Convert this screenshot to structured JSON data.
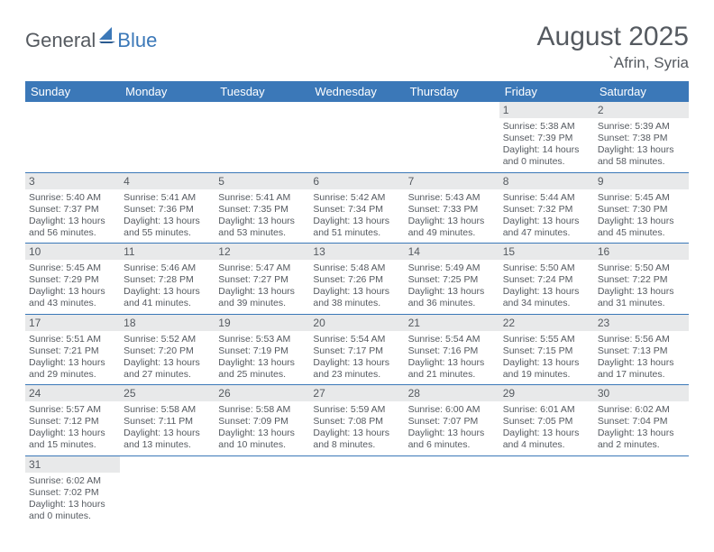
{
  "logo": {
    "general": "General",
    "blue": "Blue"
  },
  "header": {
    "title": "August 2025",
    "location": "`Afrin, Syria"
  },
  "colors": {
    "accent": "#3b78b8",
    "header_bg": "#3b78b8",
    "header_text": "#ffffff",
    "daynum_bg": "#e8e9ea",
    "text": "#555a60",
    "row_divider": "#3b78b8"
  },
  "dayNames": [
    "Sunday",
    "Monday",
    "Tuesday",
    "Wednesday",
    "Thursday",
    "Friday",
    "Saturday"
  ],
  "weeks": [
    [
      null,
      null,
      null,
      null,
      null,
      {
        "n": "1",
        "sunrise": "5:38 AM",
        "sunset": "7:39 PM",
        "dayH": 14,
        "dayM": 0
      },
      {
        "n": "2",
        "sunrise": "5:39 AM",
        "sunset": "7:38 PM",
        "dayH": 13,
        "dayM": 58
      }
    ],
    [
      {
        "n": "3",
        "sunrise": "5:40 AM",
        "sunset": "7:37 PM",
        "dayH": 13,
        "dayM": 56
      },
      {
        "n": "4",
        "sunrise": "5:41 AM",
        "sunset": "7:36 PM",
        "dayH": 13,
        "dayM": 55
      },
      {
        "n": "5",
        "sunrise": "5:41 AM",
        "sunset": "7:35 PM",
        "dayH": 13,
        "dayM": 53
      },
      {
        "n": "6",
        "sunrise": "5:42 AM",
        "sunset": "7:34 PM",
        "dayH": 13,
        "dayM": 51
      },
      {
        "n": "7",
        "sunrise": "5:43 AM",
        "sunset": "7:33 PM",
        "dayH": 13,
        "dayM": 49
      },
      {
        "n": "8",
        "sunrise": "5:44 AM",
        "sunset": "7:32 PM",
        "dayH": 13,
        "dayM": 47
      },
      {
        "n": "9",
        "sunrise": "5:45 AM",
        "sunset": "7:30 PM",
        "dayH": 13,
        "dayM": 45
      }
    ],
    [
      {
        "n": "10",
        "sunrise": "5:45 AM",
        "sunset": "7:29 PM",
        "dayH": 13,
        "dayM": 43
      },
      {
        "n": "11",
        "sunrise": "5:46 AM",
        "sunset": "7:28 PM",
        "dayH": 13,
        "dayM": 41
      },
      {
        "n": "12",
        "sunrise": "5:47 AM",
        "sunset": "7:27 PM",
        "dayH": 13,
        "dayM": 39
      },
      {
        "n": "13",
        "sunrise": "5:48 AM",
        "sunset": "7:26 PM",
        "dayH": 13,
        "dayM": 38
      },
      {
        "n": "14",
        "sunrise": "5:49 AM",
        "sunset": "7:25 PM",
        "dayH": 13,
        "dayM": 36
      },
      {
        "n": "15",
        "sunrise": "5:50 AM",
        "sunset": "7:24 PM",
        "dayH": 13,
        "dayM": 34
      },
      {
        "n": "16",
        "sunrise": "5:50 AM",
        "sunset": "7:22 PM",
        "dayH": 13,
        "dayM": 31
      }
    ],
    [
      {
        "n": "17",
        "sunrise": "5:51 AM",
        "sunset": "7:21 PM",
        "dayH": 13,
        "dayM": 29
      },
      {
        "n": "18",
        "sunrise": "5:52 AM",
        "sunset": "7:20 PM",
        "dayH": 13,
        "dayM": 27
      },
      {
        "n": "19",
        "sunrise": "5:53 AM",
        "sunset": "7:19 PM",
        "dayH": 13,
        "dayM": 25
      },
      {
        "n": "20",
        "sunrise": "5:54 AM",
        "sunset": "7:17 PM",
        "dayH": 13,
        "dayM": 23
      },
      {
        "n": "21",
        "sunrise": "5:54 AM",
        "sunset": "7:16 PM",
        "dayH": 13,
        "dayM": 21
      },
      {
        "n": "22",
        "sunrise": "5:55 AM",
        "sunset": "7:15 PM",
        "dayH": 13,
        "dayM": 19
      },
      {
        "n": "23",
        "sunrise": "5:56 AM",
        "sunset": "7:13 PM",
        "dayH": 13,
        "dayM": 17
      }
    ],
    [
      {
        "n": "24",
        "sunrise": "5:57 AM",
        "sunset": "7:12 PM",
        "dayH": 13,
        "dayM": 15
      },
      {
        "n": "25",
        "sunrise": "5:58 AM",
        "sunset": "7:11 PM",
        "dayH": 13,
        "dayM": 13
      },
      {
        "n": "26",
        "sunrise": "5:58 AM",
        "sunset": "7:09 PM",
        "dayH": 13,
        "dayM": 10
      },
      {
        "n": "27",
        "sunrise": "5:59 AM",
        "sunset": "7:08 PM",
        "dayH": 13,
        "dayM": 8
      },
      {
        "n": "28",
        "sunrise": "6:00 AM",
        "sunset": "7:07 PM",
        "dayH": 13,
        "dayM": 6
      },
      {
        "n": "29",
        "sunrise": "6:01 AM",
        "sunset": "7:05 PM",
        "dayH": 13,
        "dayM": 4
      },
      {
        "n": "30",
        "sunrise": "6:02 AM",
        "sunset": "7:04 PM",
        "dayH": 13,
        "dayM": 2
      }
    ],
    [
      {
        "n": "31",
        "sunrise": "6:02 AM",
        "sunset": "7:02 PM",
        "dayH": 13,
        "dayM": 0
      },
      null,
      null,
      null,
      null,
      null,
      null
    ]
  ],
  "labels": {
    "sunrise": "Sunrise:",
    "sunset": "Sunset:",
    "daylightPrefix": "Daylight:",
    "hoursWord": "hours",
    "andWord": "and",
    "minutesWord": "minutes."
  }
}
